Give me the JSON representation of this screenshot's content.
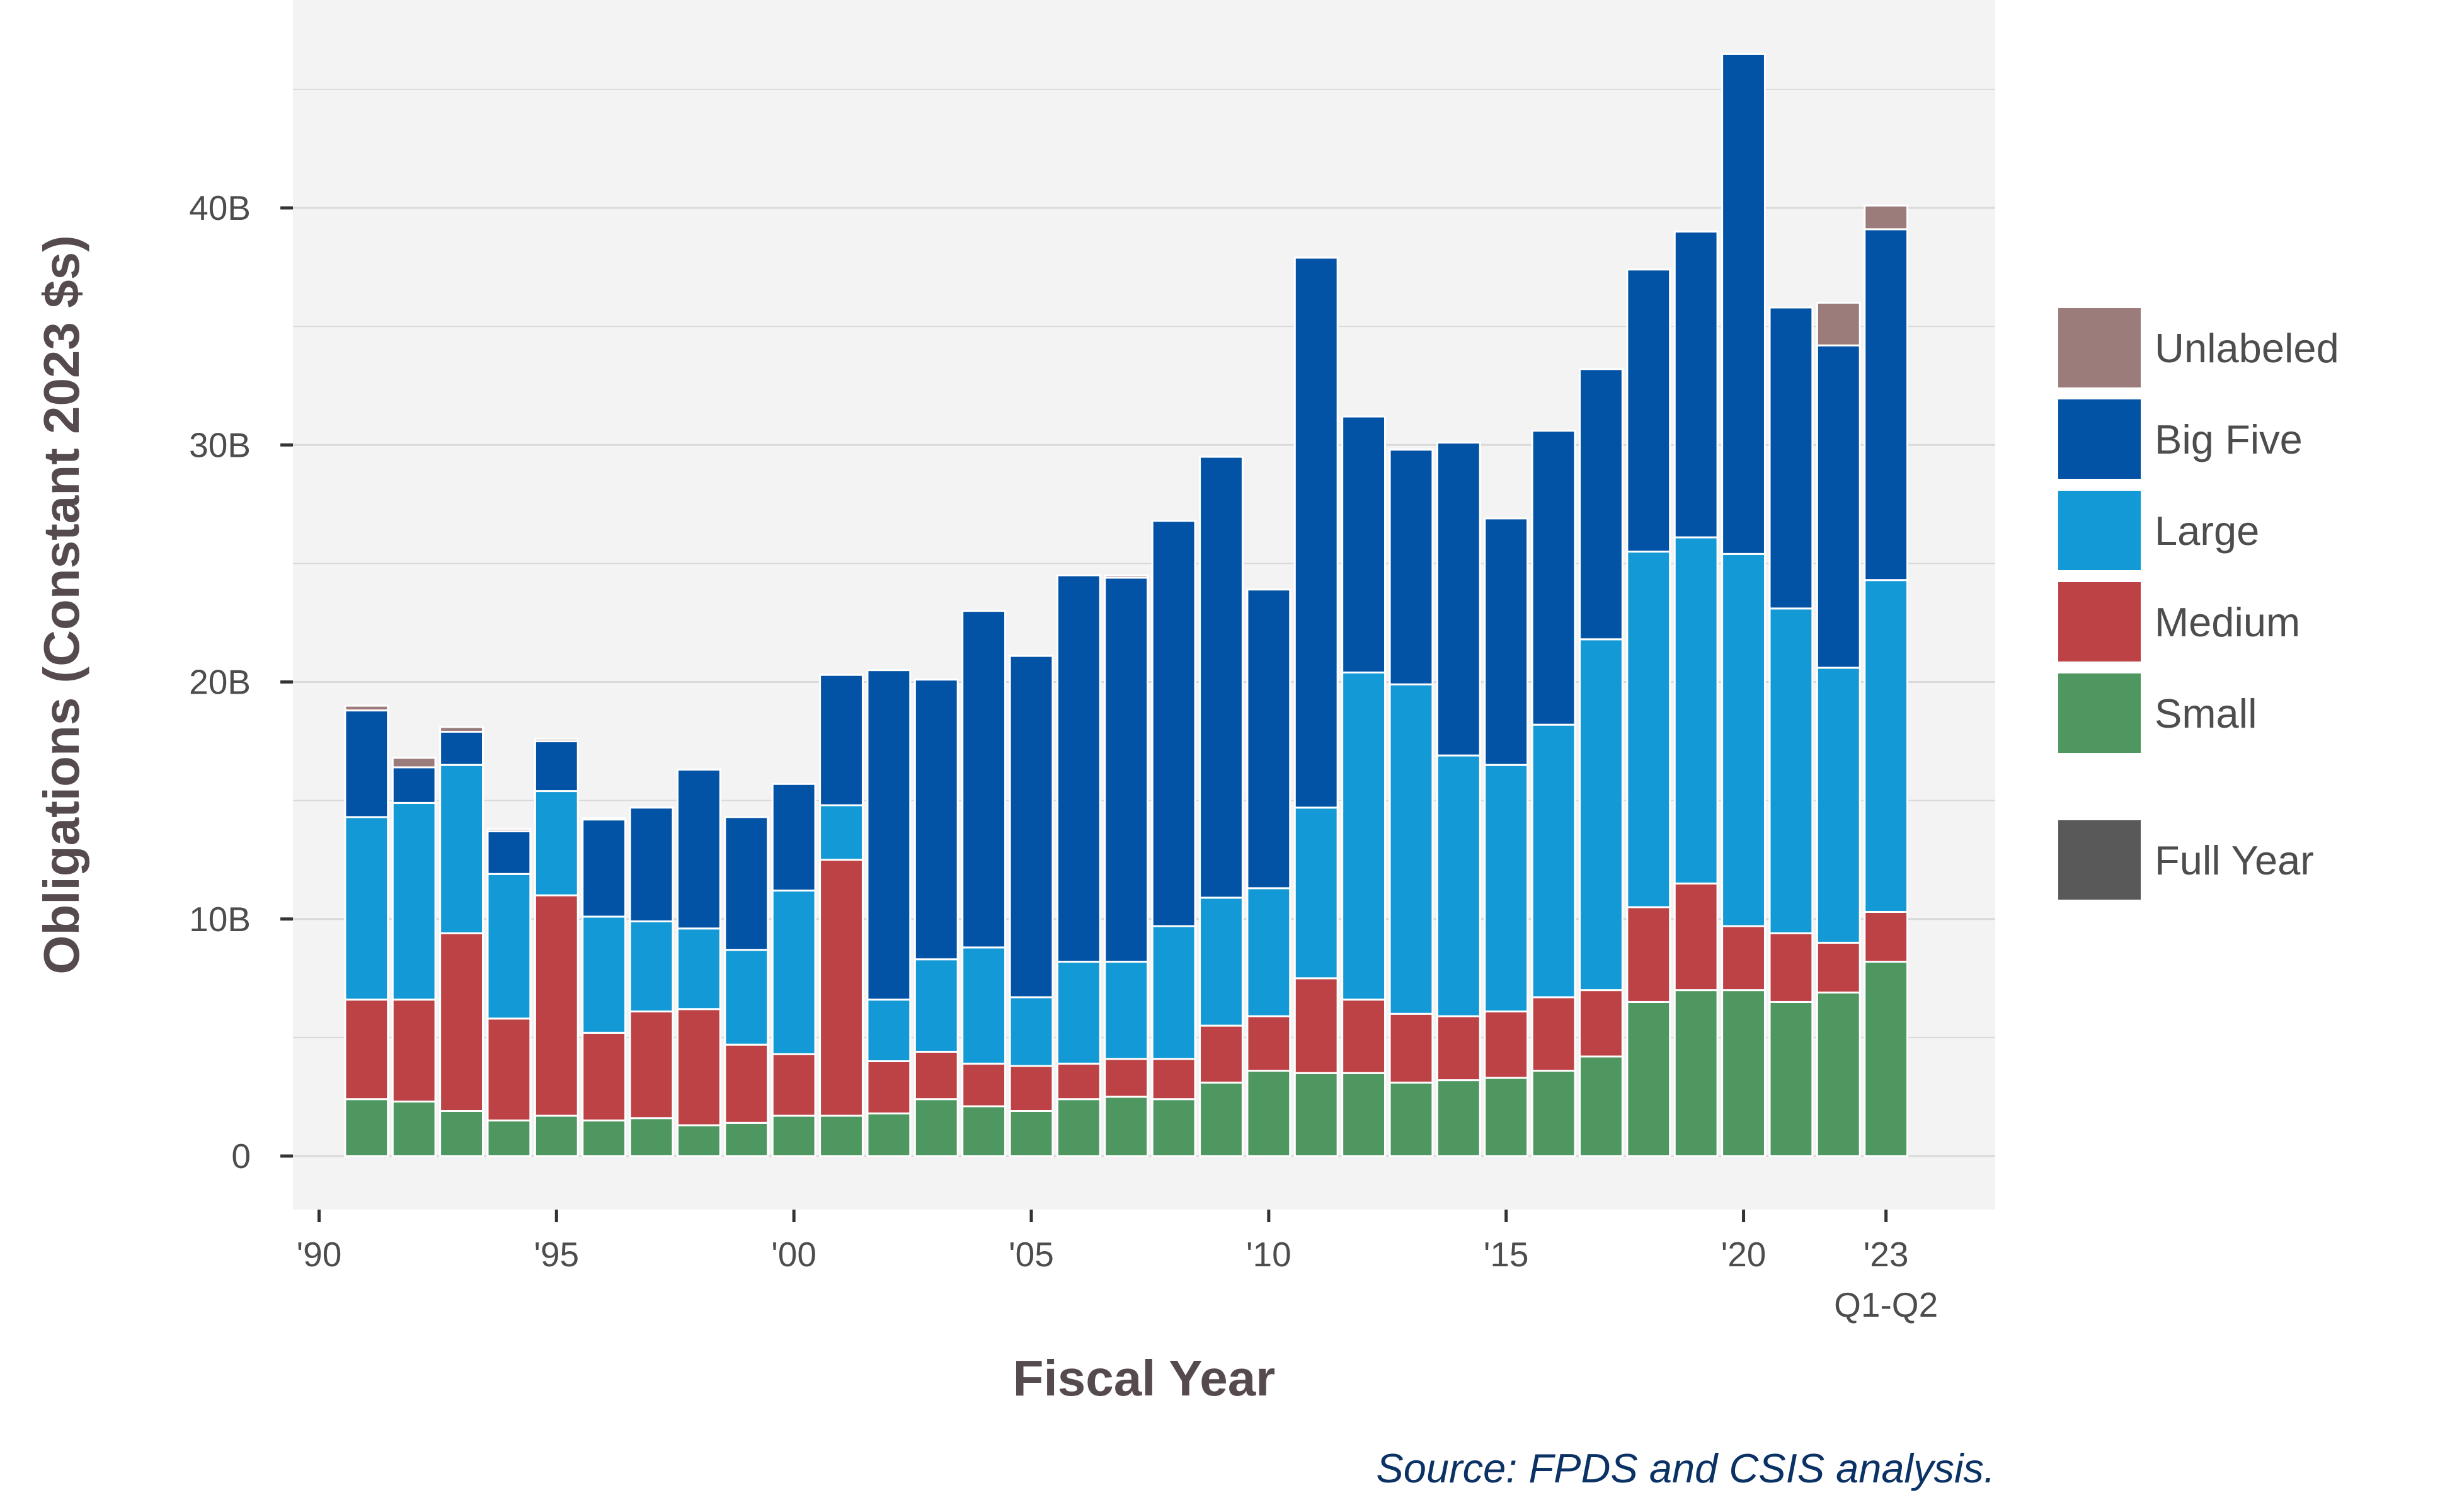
{
  "chart_data": {
    "type": "bar",
    "stacked": true,
    "xlabel": "Fiscal Year",
    "ylabel": "Obligations (Constant 2023 $s)",
    "source": "Source: FPDS and CSIS analysis.",
    "ylim": [
      0,
      48
    ],
    "y_unit": "B",
    "y_ticks": [
      {
        "value": 0,
        "label": "0"
      },
      {
        "value": 10,
        "label": "10B"
      },
      {
        "value": 20,
        "label": "20B"
      },
      {
        "value": 30,
        "label": "30B"
      },
      {
        "value": 40,
        "label": "40B"
      }
    ],
    "x_ticks": [
      {
        "value": 1990,
        "label": "'90"
      },
      {
        "value": 1995,
        "label": "'95"
      },
      {
        "value": 2000,
        "label": "'00"
      },
      {
        "value": 2005,
        "label": "'05"
      },
      {
        "value": 2010,
        "label": "'10"
      },
      {
        "value": 2015,
        "label": "'15"
      },
      {
        "value": 2020,
        "label": "'20"
      },
      {
        "value": 2023,
        "label": "'23",
        "sublabel": "Q1-Q2"
      }
    ],
    "x_range": [
      1989.45,
      2025.3
    ],
    "categories": [
      1991,
      1992,
      1993,
      1994,
      1995,
      1996,
      1997,
      1998,
      1999,
      2000,
      2001,
      2002,
      2003,
      2004,
      2005,
      2006,
      2007,
      2008,
      2009,
      2010,
      2011,
      2012,
      2013,
      2014,
      2015,
      2016,
      2017,
      2018,
      2019,
      2020,
      2021,
      2022,
      2023
    ],
    "series": [
      {
        "name": "Small",
        "color": "#4e9760",
        "values": [
          2.4,
          2.3,
          1.9,
          1.5,
          1.7,
          1.5,
          1.6,
          1.3,
          1.4,
          1.7,
          1.7,
          1.8,
          2.4,
          2.1,
          1.9,
          2.4,
          2.5,
          2.4,
          3.1,
          3.6,
          3.5,
          3.5,
          3.1,
          3.2,
          3.3,
          3.6,
          4.2,
          6.5,
          7.0,
          7.0,
          6.5,
          6.9,
          8.2
        ]
      },
      {
        "name": "Medium",
        "color": "#bc4245",
        "values": [
          4.2,
          4.3,
          7.5,
          4.3,
          9.3,
          3.7,
          4.5,
          4.9,
          3.3,
          2.6,
          10.8,
          2.2,
          2.0,
          1.8,
          1.9,
          1.5,
          1.6,
          1.7,
          2.4,
          2.3,
          4.0,
          3.1,
          2.9,
          2.7,
          2.8,
          3.1,
          2.8,
          4.0,
          4.5,
          2.7,
          2.9,
          2.1,
          2.1
        ]
      },
      {
        "name": "Large",
        "color": "#1399d6",
        "values": [
          7.7,
          8.3,
          7.1,
          6.1,
          4.4,
          4.9,
          3.8,
          3.4,
          4.0,
          6.9,
          2.3,
          2.6,
          3.9,
          4.9,
          2.9,
          4.3,
          4.1,
          5.6,
          5.4,
          5.4,
          7.2,
          13.8,
          13.9,
          11.0,
          10.4,
          11.5,
          14.8,
          15.0,
          14.6,
          15.7,
          13.7,
          11.6,
          14.0
        ]
      },
      {
        "name": "Big Five",
        "color": "#0253a5",
        "values": [
          4.5,
          1.5,
          1.4,
          1.8,
          2.1,
          4.1,
          4.8,
          6.7,
          5.6,
          4.5,
          5.5,
          13.9,
          11.8,
          14.2,
          14.4,
          16.3,
          16.2,
          17.1,
          18.6,
          12.6,
          23.2,
          10.8,
          9.9,
          13.2,
          10.4,
          12.4,
          11.4,
          11.9,
          12.9,
          21.1,
          12.7,
          13.6,
          14.8
        ]
      },
      {
        "name": "Unlabeled",
        "color": "#9b7c7b",
        "values": [
          0.2,
          0.4,
          0.2,
          0.1,
          0.1,
          0.05,
          0,
          0,
          0,
          0,
          0,
          0,
          0,
          0,
          0,
          0,
          0.1,
          0,
          0,
          0,
          0,
          0,
          0,
          0,
          0,
          0,
          0,
          0,
          0,
          0,
          0,
          1.8,
          1.0
        ]
      }
    ],
    "legend": {
      "placement": "right",
      "items": [
        {
          "label": "Unlabeled",
          "color": "#9b7c7b"
        },
        {
          "label": "Big Five",
          "color": "#0253a5"
        },
        {
          "label": "Large",
          "color": "#1399d6"
        },
        {
          "label": "Medium",
          "color": "#bc4245"
        },
        {
          "label": "Small",
          "color": "#4e9760"
        }
      ],
      "extra": {
        "label": "Full Year",
        "color": "#595959"
      }
    },
    "grid": true,
    "panel_background": "#f3f3f3",
    "gridline_color": "#d9d9d9"
  }
}
